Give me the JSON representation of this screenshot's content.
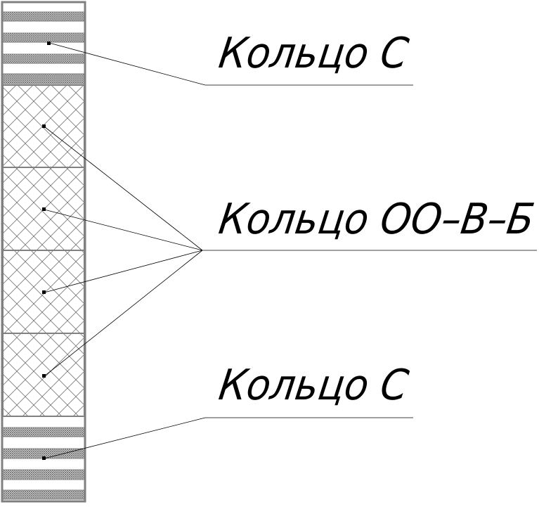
{
  "labels": {
    "top": "Кольцо С",
    "middle": "Кольцо ОО–В–Б",
    "bottom": "Кольцо С"
  },
  "colors": {
    "line": "#000000",
    "frame": "#808080",
    "hatch": "#6e6e6e",
    "background": "#ffffff"
  }
}
